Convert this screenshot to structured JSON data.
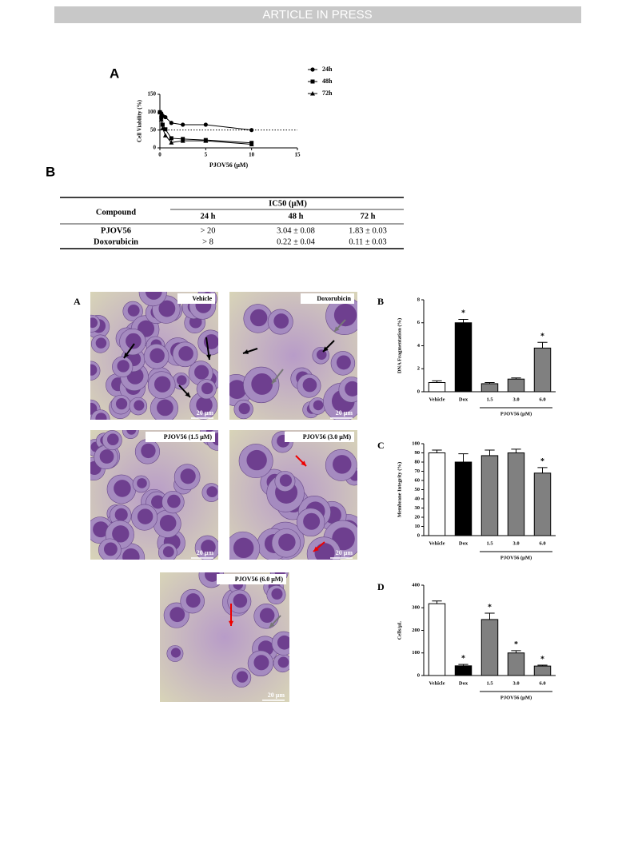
{
  "header": {
    "banner": "ARTICLE IN PRESS"
  },
  "chart_data": [
    {
      "type": "line",
      "panel": "A",
      "x_label": "PJOV56 (μM)",
      "y_label": "Cell Viability (%)",
      "xlim": [
        0,
        15
      ],
      "xticks": [
        0,
        5,
        10,
        15
      ],
      "ylim": [
        0,
        150
      ],
      "yticks": [
        0,
        50,
        100,
        150
      ],
      "reference_line": 50,
      "legend": "right",
      "x": [
        0,
        0.15,
        0.3,
        0.6,
        1.25,
        2.5,
        5,
        10
      ],
      "series": [
        {
          "name": "24h",
          "color": "#000000",
          "marker": "circle",
          "values": [
            100,
            97,
            90,
            86,
            70,
            65,
            65,
            50
          ]
        },
        {
          "name": "48h",
          "color": "#000000",
          "marker": "square",
          "values": [
            100,
            85,
            65,
            52,
            27,
            25,
            22,
            14
          ]
        },
        {
          "name": "72h",
          "color": "#000000",
          "marker": "triangle",
          "values": [
            100,
            80,
            55,
            35,
            15,
            20,
            20,
            10
          ]
        }
      ]
    },
    {
      "type": "bar",
      "panel": "B",
      "y_label": "DNA Fragmentation (%)",
      "group_label": "PJOV56 (μM)",
      "categories": [
        "Vehicle",
        "Dox",
        "1.5",
        "3.0",
        "6.0"
      ],
      "values": [
        0.8,
        6.0,
        0.7,
        1.1,
        3.8
      ],
      "errors": [
        0.15,
        0.3,
        0.1,
        0.1,
        0.5
      ],
      "colors": [
        "#ffffff",
        "#000000",
        "#808080",
        "#808080",
        "#808080"
      ],
      "significance": [
        null,
        "*",
        null,
        null,
        "*"
      ],
      "ylim": [
        0,
        8
      ],
      "yticks": [
        0,
        2,
        4,
        6,
        8
      ]
    },
    {
      "type": "bar",
      "panel": "C",
      "y_label": "Membrane Integrity (%)",
      "group_label": "PJOV56 (μM)",
      "categories": [
        "Vehicle",
        "Dox",
        "1.5",
        "3.0",
        "6.0"
      ],
      "values": [
        90,
        80,
        87,
        90,
        68
      ],
      "errors": [
        3,
        9,
        6,
        4,
        6
      ],
      "colors": [
        "#ffffff",
        "#000000",
        "#808080",
        "#808080",
        "#808080"
      ],
      "significance": [
        null,
        null,
        null,
        null,
        "*"
      ],
      "ylim": [
        0,
        100
      ],
      "yticks": [
        0,
        10,
        20,
        30,
        40,
        50,
        60,
        70,
        80,
        90,
        100
      ]
    },
    {
      "type": "bar",
      "panel": "D",
      "y_label": "Cells/μL",
      "group_label": "PJOV56 (μM)",
      "categories": [
        "Vehicle",
        "Dox",
        "1.5",
        "3.0",
        "6.0"
      ],
      "values": [
        318,
        43,
        248,
        100,
        42
      ],
      "errors": [
        12,
        6,
        28,
        10,
        4
      ],
      "colors": [
        "#ffffff",
        "#000000",
        "#808080",
        "#808080",
        "#808080"
      ],
      "significance": [
        null,
        "*",
        "*",
        "*",
        "*"
      ],
      "ylim": [
        0,
        400
      ],
      "yticks": [
        0,
        100,
        200,
        300,
        400
      ]
    }
  ],
  "table": {
    "panel": "B",
    "header": {
      "compound": "Compound",
      "group": "IC50 (μM)",
      "columns": [
        "24 h",
        "48 h",
        "72 h"
      ]
    },
    "rows": [
      [
        "PJOV56",
        "> 20",
        "3.04 ± 0.08",
        "1.83 ± 0.03"
      ],
      [
        "Doxorubicin",
        "> 8",
        "0.22 ± 0.04",
        "0.11 ± 0.03"
      ]
    ]
  },
  "micrographs": {
    "panel": "A",
    "images": [
      {
        "caption": "Vehicle",
        "scale": "20 μm"
      },
      {
        "caption": "Doxorubicin",
        "scale": "20 μm"
      },
      {
        "caption": "PJOV56 (1.5 μM)",
        "scale": "20 μm"
      },
      {
        "caption": "PJOV56 (3.0 μM)",
        "scale": "20 μm"
      },
      {
        "caption": "PJOV56 (6.0 μM)",
        "scale": "20 μm"
      }
    ]
  }
}
